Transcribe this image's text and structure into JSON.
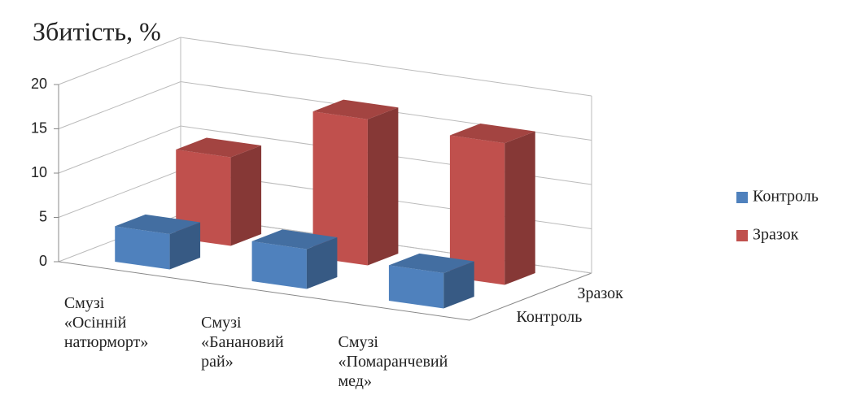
{
  "chart_data": {
    "type": "bar3d",
    "title": "Збитість, %",
    "categories": [
      [
        "Смузі",
        "«Осінній",
        "натюрморт»"
      ],
      [
        "Смузі",
        "«Банановий",
        "рай»"
      ],
      [
        "Смузі",
        "«Помаранчевий",
        "мед»"
      ]
    ],
    "depth_categories": [
      "Контроль",
      "Зразок"
    ],
    "series": [
      {
        "name": "Контроль",
        "color": "#4f81bd",
        "values": [
          4,
          4.5,
          4
        ]
      },
      {
        "name": "Зразок",
        "color": "#c0504d",
        "values": [
          10,
          16.5,
          16
        ]
      }
    ],
    "ylim": [
      0,
      20
    ],
    "yticks": [
      0,
      5,
      10,
      15,
      20
    ],
    "grid": true,
    "legend": "right"
  }
}
